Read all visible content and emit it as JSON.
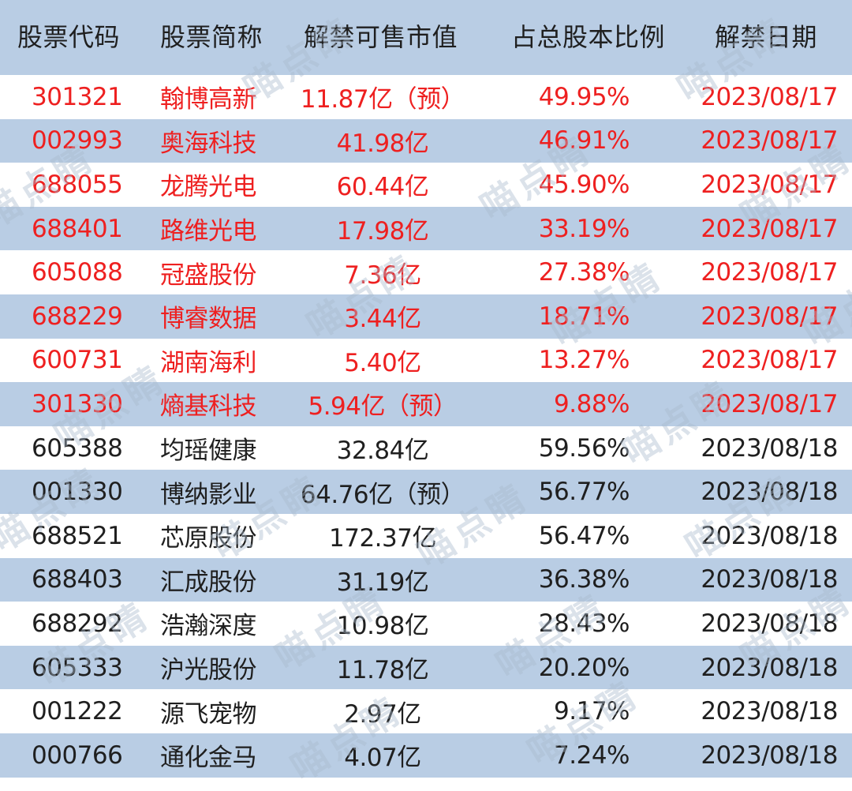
{
  "columns": {
    "code": "股票代码",
    "name": "股票简称",
    "value": "解禁可售市值",
    "ratio": "占总股本比例",
    "date": "解禁日期"
  },
  "colors": {
    "band": "#b9cde4",
    "highlight_text": "#ee2020",
    "normal_text": "#1f1f1f"
  },
  "rows": [
    {
      "code": "301321",
      "name": "翰博高新",
      "value": "11.87亿（预）",
      "ratio": "49.95%",
      "date": "2023/08/17"
    },
    {
      "code": "002993",
      "name": "奥海科技",
      "value": "41.98亿",
      "ratio": "46.91%",
      "date": "2023/08/17"
    },
    {
      "code": "688055",
      "name": "龙腾光电",
      "value": "60.44亿",
      "ratio": "45.90%",
      "date": "2023/08/17"
    },
    {
      "code": "688401",
      "name": "路维光电",
      "value": "17.98亿",
      "ratio": "33.19%",
      "date": "2023/08/17"
    },
    {
      "code": "605088",
      "name": "冠盛股份",
      "value": "7.36亿",
      "ratio": "27.38%",
      "date": "2023/08/17"
    },
    {
      "code": "688229",
      "name": "博睿数据",
      "value": "3.44亿",
      "ratio": "18.71%",
      "date": "2023/08/17"
    },
    {
      "code": "600731",
      "name": "湖南海利",
      "value": "5.40亿",
      "ratio": "13.27%",
      "date": "2023/08/17"
    },
    {
      "code": "301330",
      "name": "熵基科技",
      "value": "5.94亿（预）",
      "ratio": "9.88%",
      "date": "2023/08/17"
    },
    {
      "code": "605388",
      "name": "均瑶健康",
      "value": "32.84亿",
      "ratio": "59.56%",
      "date": "2023/08/18"
    },
    {
      "code": "001330",
      "name": "博纳影业",
      "value": "64.76亿（预）",
      "ratio": "56.77%",
      "date": "2023/08/18"
    },
    {
      "code": "688521",
      "name": "芯原股份",
      "value": "172.37亿",
      "ratio": "56.47%",
      "date": "2023/08/18"
    },
    {
      "code": "688403",
      "name": "汇成股份",
      "value": "31.19亿",
      "ratio": "36.38%",
      "date": "2023/08/18"
    },
    {
      "code": "688292",
      "name": "浩瀚深度",
      "value": "10.98亿",
      "ratio": "28.43%",
      "date": "2023/08/18"
    },
    {
      "code": "605333",
      "name": "沪光股份",
      "value": "11.78亿",
      "ratio": "20.20%",
      "date": "2023/08/18"
    },
    {
      "code": "001222",
      "name": "源飞宠物",
      "value": "2.97亿",
      "ratio": "9.17%",
      "date": "2023/08/18"
    },
    {
      "code": "000766",
      "name": "通化金马",
      "value": "4.07亿",
      "ratio": "7.24%",
      "date": "2023/08/18"
    }
  ],
  "watermark": "喵点睛"
}
